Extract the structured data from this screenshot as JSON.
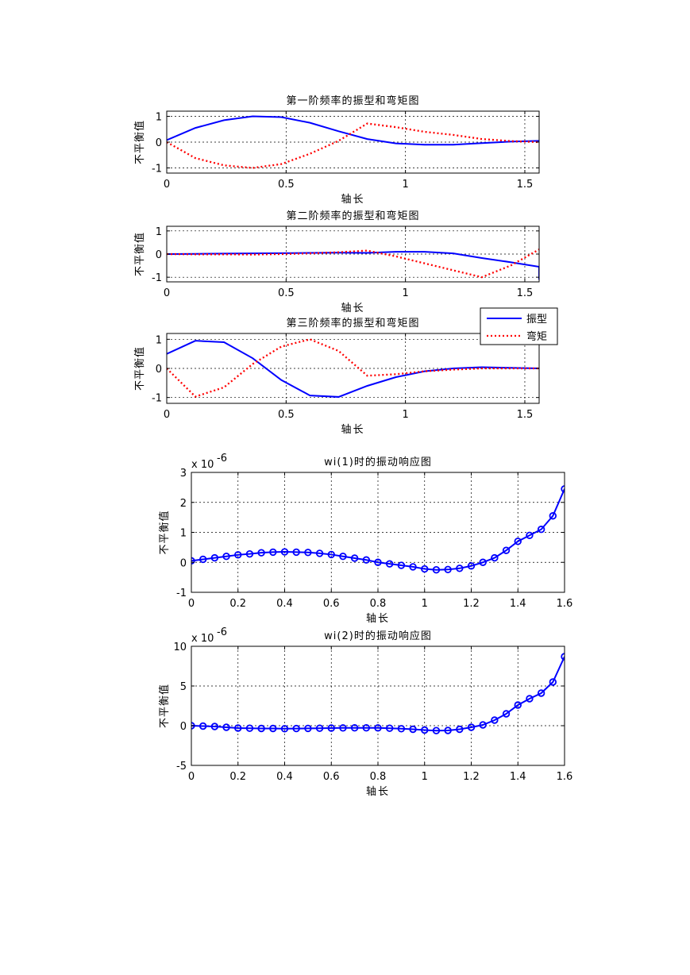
{
  "chart_data": [
    {
      "type": "line",
      "title": "第一阶频率的振型和弯矩图",
      "xlabel": "轴长",
      "ylabel": "不平衡值",
      "xlim": [
        0,
        1.56
      ],
      "ylim": [
        -1.2,
        1.2
      ],
      "xticks": [
        0,
        0.5,
        1,
        1.5
      ],
      "xtick_labels": [
        "0",
        "0.5",
        "1",
        "1.5"
      ],
      "yticks": [
        -1,
        0,
        1
      ],
      "ytick_labels": [
        "-1",
        "0",
        "1"
      ],
      "grid": true,
      "series": [
        {
          "name": "振型",
          "color": "#0000ff",
          "style": "solid",
          "x": [
            0,
            0.12,
            0.24,
            0.36,
            0.48,
            0.6,
            0.72,
            0.84,
            0.96,
            1.08,
            1.2,
            1.32,
            1.44,
            1.56
          ],
          "y": [
            0.08,
            0.55,
            0.85,
            1.0,
            0.97,
            0.75,
            0.42,
            0.12,
            -0.05,
            -0.1,
            -0.1,
            -0.04,
            0.02,
            0.05
          ]
        },
        {
          "name": "弯矩",
          "color": "#ff0000",
          "style": "dotted",
          "x": [
            0,
            0.12,
            0.24,
            0.36,
            0.48,
            0.6,
            0.72,
            0.84,
            0.96,
            1.08,
            1.2,
            1.32,
            1.44,
            1.56
          ],
          "y": [
            0.0,
            -0.62,
            -0.9,
            -1.0,
            -0.85,
            -0.45,
            0.05,
            0.72,
            0.58,
            0.4,
            0.28,
            0.12,
            0.04,
            0.0
          ]
        }
      ]
    },
    {
      "type": "line",
      "title": "第二阶频率的振型和弯矩图",
      "xlabel": "轴长",
      "ylabel": "不平衡值",
      "xlim": [
        0,
        1.56
      ],
      "ylim": [
        -1.2,
        1.2
      ],
      "xticks": [
        0,
        0.5,
        1,
        1.5
      ],
      "xtick_labels": [
        "0",
        "0.5",
        "1",
        "1.5"
      ],
      "yticks": [
        -1,
        0,
        1
      ],
      "ytick_labels": [
        "-1",
        "0",
        "1"
      ],
      "grid": true,
      "series": [
        {
          "name": "振型",
          "color": "#0000ff",
          "style": "solid",
          "x": [
            0,
            0.12,
            0.24,
            0.36,
            0.48,
            0.6,
            0.72,
            0.84,
            0.96,
            1.08,
            1.2,
            1.32,
            1.44,
            1.56,
            1.56
          ],
          "y": [
            0.0,
            0.01,
            0.02,
            0.03,
            0.04,
            0.05,
            0.06,
            0.05,
            0.1,
            0.1,
            0.03,
            -0.17,
            -0.35,
            -0.55,
            -1.1
          ]
        },
        {
          "name": "弯矩",
          "color": "#ff0000",
          "style": "dotted",
          "x": [
            0,
            0.12,
            0.24,
            0.36,
            0.48,
            0.6,
            0.72,
            0.84,
            0.96,
            1.08,
            1.2,
            1.32,
            1.44,
            1.56
          ],
          "y": [
            0.0,
            -0.01,
            -0.01,
            -0.02,
            0.0,
            0.03,
            0.08,
            0.15,
            -0.1,
            -0.4,
            -0.7,
            -1.0,
            -0.5,
            0.2
          ]
        }
      ]
    },
    {
      "type": "line",
      "title": "第三阶频率的振型和弯矩图",
      "xlabel": "轴长",
      "ylabel": "不平衡值",
      "xlim": [
        0,
        1.56
      ],
      "ylim": [
        -1.2,
        1.2
      ],
      "xticks": [
        0,
        0.5,
        1,
        1.5
      ],
      "xtick_labels": [
        "0",
        "0.5",
        "1",
        "1.5"
      ],
      "yticks": [
        -1,
        0,
        1
      ],
      "ytick_labels": [
        "-1",
        "0",
        "1"
      ],
      "grid": true,
      "legend": {
        "placement": "top-right",
        "entries": [
          "振型",
          "弯矩"
        ]
      },
      "series": [
        {
          "name": "振型",
          "color": "#0000ff",
          "style": "solid",
          "x": [
            0,
            0.12,
            0.24,
            0.36,
            0.48,
            0.6,
            0.72,
            0.84,
            0.96,
            1.08,
            1.2,
            1.32,
            1.44,
            1.56
          ],
          "y": [
            0.5,
            0.95,
            0.9,
            0.35,
            -0.4,
            -0.93,
            -0.98,
            -0.6,
            -0.3,
            -0.1,
            0.0,
            0.04,
            0.02,
            0.0
          ]
        },
        {
          "name": "弯矩",
          "color": "#ff0000",
          "style": "dotted",
          "x": [
            0,
            0.12,
            0.24,
            0.36,
            0.48,
            0.6,
            0.72,
            0.84,
            0.96,
            1.08,
            1.2,
            1.32,
            1.44,
            1.56
          ],
          "y": [
            0.0,
            -0.97,
            -0.65,
            0.15,
            0.75,
            1.0,
            0.6,
            -0.25,
            -0.2,
            -0.1,
            -0.04,
            0.0,
            0.0,
            0.0
          ]
        }
      ]
    },
    {
      "type": "line",
      "title": "wi(1)时的振动响应图",
      "xlabel": "轴长",
      "ylabel": "不平衡值",
      "y_multiplier": "x 10",
      "y_exponent": "-6",
      "xlim": [
        0,
        1.6
      ],
      "ylim": [
        -1,
        3
      ],
      "xticks": [
        0,
        0.2,
        0.4,
        0.6,
        0.8,
        1,
        1.2,
        1.4,
        1.6
      ],
      "xtick_labels": [
        "0",
        "0.2",
        "0.4",
        "0.6",
        "0.8",
        "1",
        "1.2",
        "1.4",
        "1.6"
      ],
      "yticks": [
        -1,
        0,
        1,
        2,
        3
      ],
      "ytick_labels": [
        "-1",
        "0",
        "1",
        "2",
        "3"
      ],
      "grid": true,
      "series": [
        {
          "color": "#0000ff",
          "style": "solid-circle",
          "x": [
            0,
            0.05,
            0.1,
            0.15,
            0.2,
            0.25,
            0.3,
            0.35,
            0.4,
            0.45,
            0.5,
            0.55,
            0.6,
            0.65,
            0.7,
            0.75,
            0.8,
            0.85,
            0.9,
            0.95,
            1.0,
            1.05,
            1.1,
            1.15,
            1.2,
            1.25,
            1.3,
            1.35,
            1.4,
            1.45,
            1.5,
            1.55,
            1.6
          ],
          "y": [
            0.05,
            0.1,
            0.15,
            0.2,
            0.25,
            0.28,
            0.32,
            0.34,
            0.35,
            0.34,
            0.33,
            0.3,
            0.26,
            0.2,
            0.14,
            0.08,
            0.0,
            -0.05,
            -0.1,
            -0.15,
            -0.22,
            -0.25,
            -0.24,
            -0.2,
            -0.12,
            0.0,
            0.15,
            0.4,
            0.7,
            0.9,
            1.1,
            1.55,
            2.45
          ]
        }
      ]
    },
    {
      "type": "line",
      "title": "wi(2)时的振动响应图",
      "xlabel": "轴长",
      "ylabel": "不平衡值",
      "y_multiplier": "x 10",
      "y_exponent": "-6",
      "xlim": [
        0,
        1.6
      ],
      "ylim": [
        -5,
        10
      ],
      "xticks": [
        0,
        0.2,
        0.4,
        0.6,
        0.8,
        1,
        1.2,
        1.4,
        1.6
      ],
      "xtick_labels": [
        "0",
        "0.2",
        "0.4",
        "0.6",
        "0.8",
        "1",
        "1.2",
        "1.4",
        "1.6"
      ],
      "yticks": [
        -5,
        0,
        5,
        10
      ],
      "ytick_labels": [
        "-5",
        "0",
        "5",
        "10"
      ],
      "grid": true,
      "series": [
        {
          "color": "#0000ff",
          "style": "solid-circle",
          "x": [
            0,
            0.05,
            0.1,
            0.15,
            0.2,
            0.25,
            0.3,
            0.35,
            0.4,
            0.45,
            0.5,
            0.55,
            0.6,
            0.65,
            0.7,
            0.75,
            0.8,
            0.85,
            0.9,
            0.95,
            1.0,
            1.05,
            1.1,
            1.15,
            1.2,
            1.25,
            1.3,
            1.35,
            1.4,
            1.45,
            1.5,
            1.55,
            1.6
          ],
          "y": [
            0.0,
            -0.05,
            -0.1,
            -0.2,
            -0.3,
            -0.32,
            -0.35,
            -0.35,
            -0.38,
            -0.36,
            -0.34,
            -0.32,
            -0.3,
            -0.28,
            -0.27,
            -0.27,
            -0.28,
            -0.32,
            -0.38,
            -0.45,
            -0.55,
            -0.62,
            -0.6,
            -0.45,
            -0.2,
            0.1,
            0.7,
            1.5,
            2.6,
            3.4,
            4.1,
            5.5,
            8.7
          ]
        }
      ]
    }
  ]
}
